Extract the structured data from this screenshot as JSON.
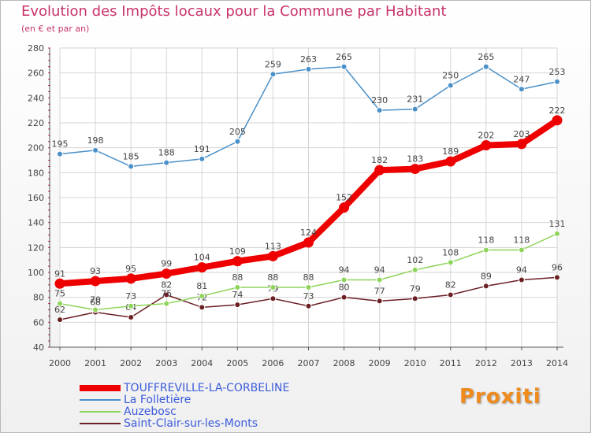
{
  "title": "Evolution des Impôts locaux pour la Commune par Habitant",
  "subtitle": "(en € et par an)",
  "logo_text": "Proxiti",
  "chart_data": {
    "type": "line",
    "title": "Evolution des Impôts locaux pour la Commune par Habitant",
    "subtitle": "(en € et par an)",
    "xlabel": "",
    "ylabel": "",
    "ylim": [
      40,
      280
    ],
    "yticks": [
      40,
      60,
      80,
      100,
      120,
      140,
      160,
      180,
      200,
      220,
      240,
      260,
      280
    ],
    "grid": true,
    "legend_position": "bottom-left",
    "categories": [
      "2000",
      "2001",
      "2002",
      "2003",
      "2004",
      "2005",
      "2006",
      "2007",
      "2008",
      "2009",
      "2010",
      "2011",
      "2012",
      "2013",
      "2014"
    ],
    "series": [
      {
        "name": "TOUFFREVILLE-LA-CORBELINE",
        "color": "#ee0000",
        "values": [
          91,
          93,
          95,
          99,
          104,
          109,
          113,
          124,
          152,
          182,
          183,
          189,
          202,
          203,
          222
        ]
      },
      {
        "name": "La Folletière",
        "color": "#4a90c8",
        "values": [
          195,
          198,
          185,
          188,
          191,
          205,
          259,
          263,
          265,
          230,
          231,
          250,
          265,
          247,
          253
        ]
      },
      {
        "name": "Auzebosc",
        "color": "#8ed45a",
        "values": [
          75,
          70,
          73,
          75,
          81,
          88,
          88,
          88,
          94,
          94,
          102,
          108,
          118,
          118,
          131
        ]
      },
      {
        "name": "Saint-Clair-sur-les-Monts",
        "color": "#6b1f23",
        "values": [
          62,
          68,
          64,
          82,
          72,
          74,
          79,
          73,
          80,
          77,
          79,
          82,
          89,
          94,
          96
        ]
      }
    ]
  }
}
